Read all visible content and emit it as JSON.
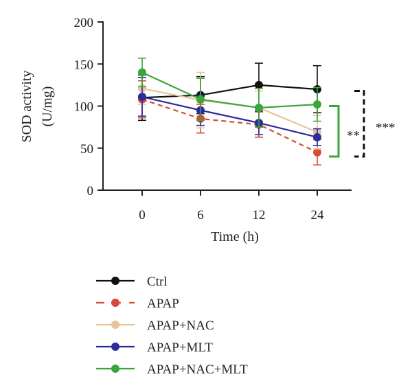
{
  "chart_data": {
    "type": "line",
    "title": "",
    "xlabel": "Time (h)",
    "ylabel": "SOD activity",
    "ylabel_unit": "(U/mg)",
    "x": [
      0,
      6,
      12,
      24
    ],
    "x_tick_labels": [
      "0",
      "6",
      "12",
      "24"
    ],
    "ylim": [
      0,
      200
    ],
    "y_ticks": [
      0,
      50,
      100,
      150,
      200
    ],
    "y_tick_labels": [
      "0",
      "50",
      "100",
      "150",
      "200"
    ],
    "grid": false,
    "legend_position": "bottom",
    "series": [
      {
        "name": "Ctrl",
        "values": [
          110,
          113,
          125,
          120
        ],
        "errors": [
          27,
          22,
          26,
          28
        ],
        "color": "#111111",
        "dash": false
      },
      {
        "name": "APAP",
        "values": [
          108,
          85,
          78,
          45
        ],
        "errors": [
          22,
          17,
          15,
          15
        ],
        "color": "#d94a3a",
        "dash": true
      },
      {
        "name": "APAP+NAC",
        "values": [
          121,
          107,
          98,
          69
        ],
        "errors": [
          19,
          33,
          20,
          20
        ],
        "color": "#e8c49a",
        "dash": false
      },
      {
        "name": "APAP+MLT",
        "values": [
          111,
          95,
          80,
          63
        ],
        "errors": [
          23,
          18,
          14,
          10
        ],
        "color": "#2c2c9e",
        "dash": false
      },
      {
        "name": "APAP+NAC+MLT",
        "values": [
          140,
          108,
          98,
          102
        ],
        "errors": [
          17,
          25,
          23,
          20
        ],
        "color": "#3aa53a",
        "dash": false
      }
    ],
    "annotations": [
      {
        "label": "**",
        "color": "#3aa53a",
        "range": [
          40,
          100
        ]
      },
      {
        "label": "***",
        "color": "#111111",
        "range": [
          40,
          118
        ]
      }
    ]
  }
}
